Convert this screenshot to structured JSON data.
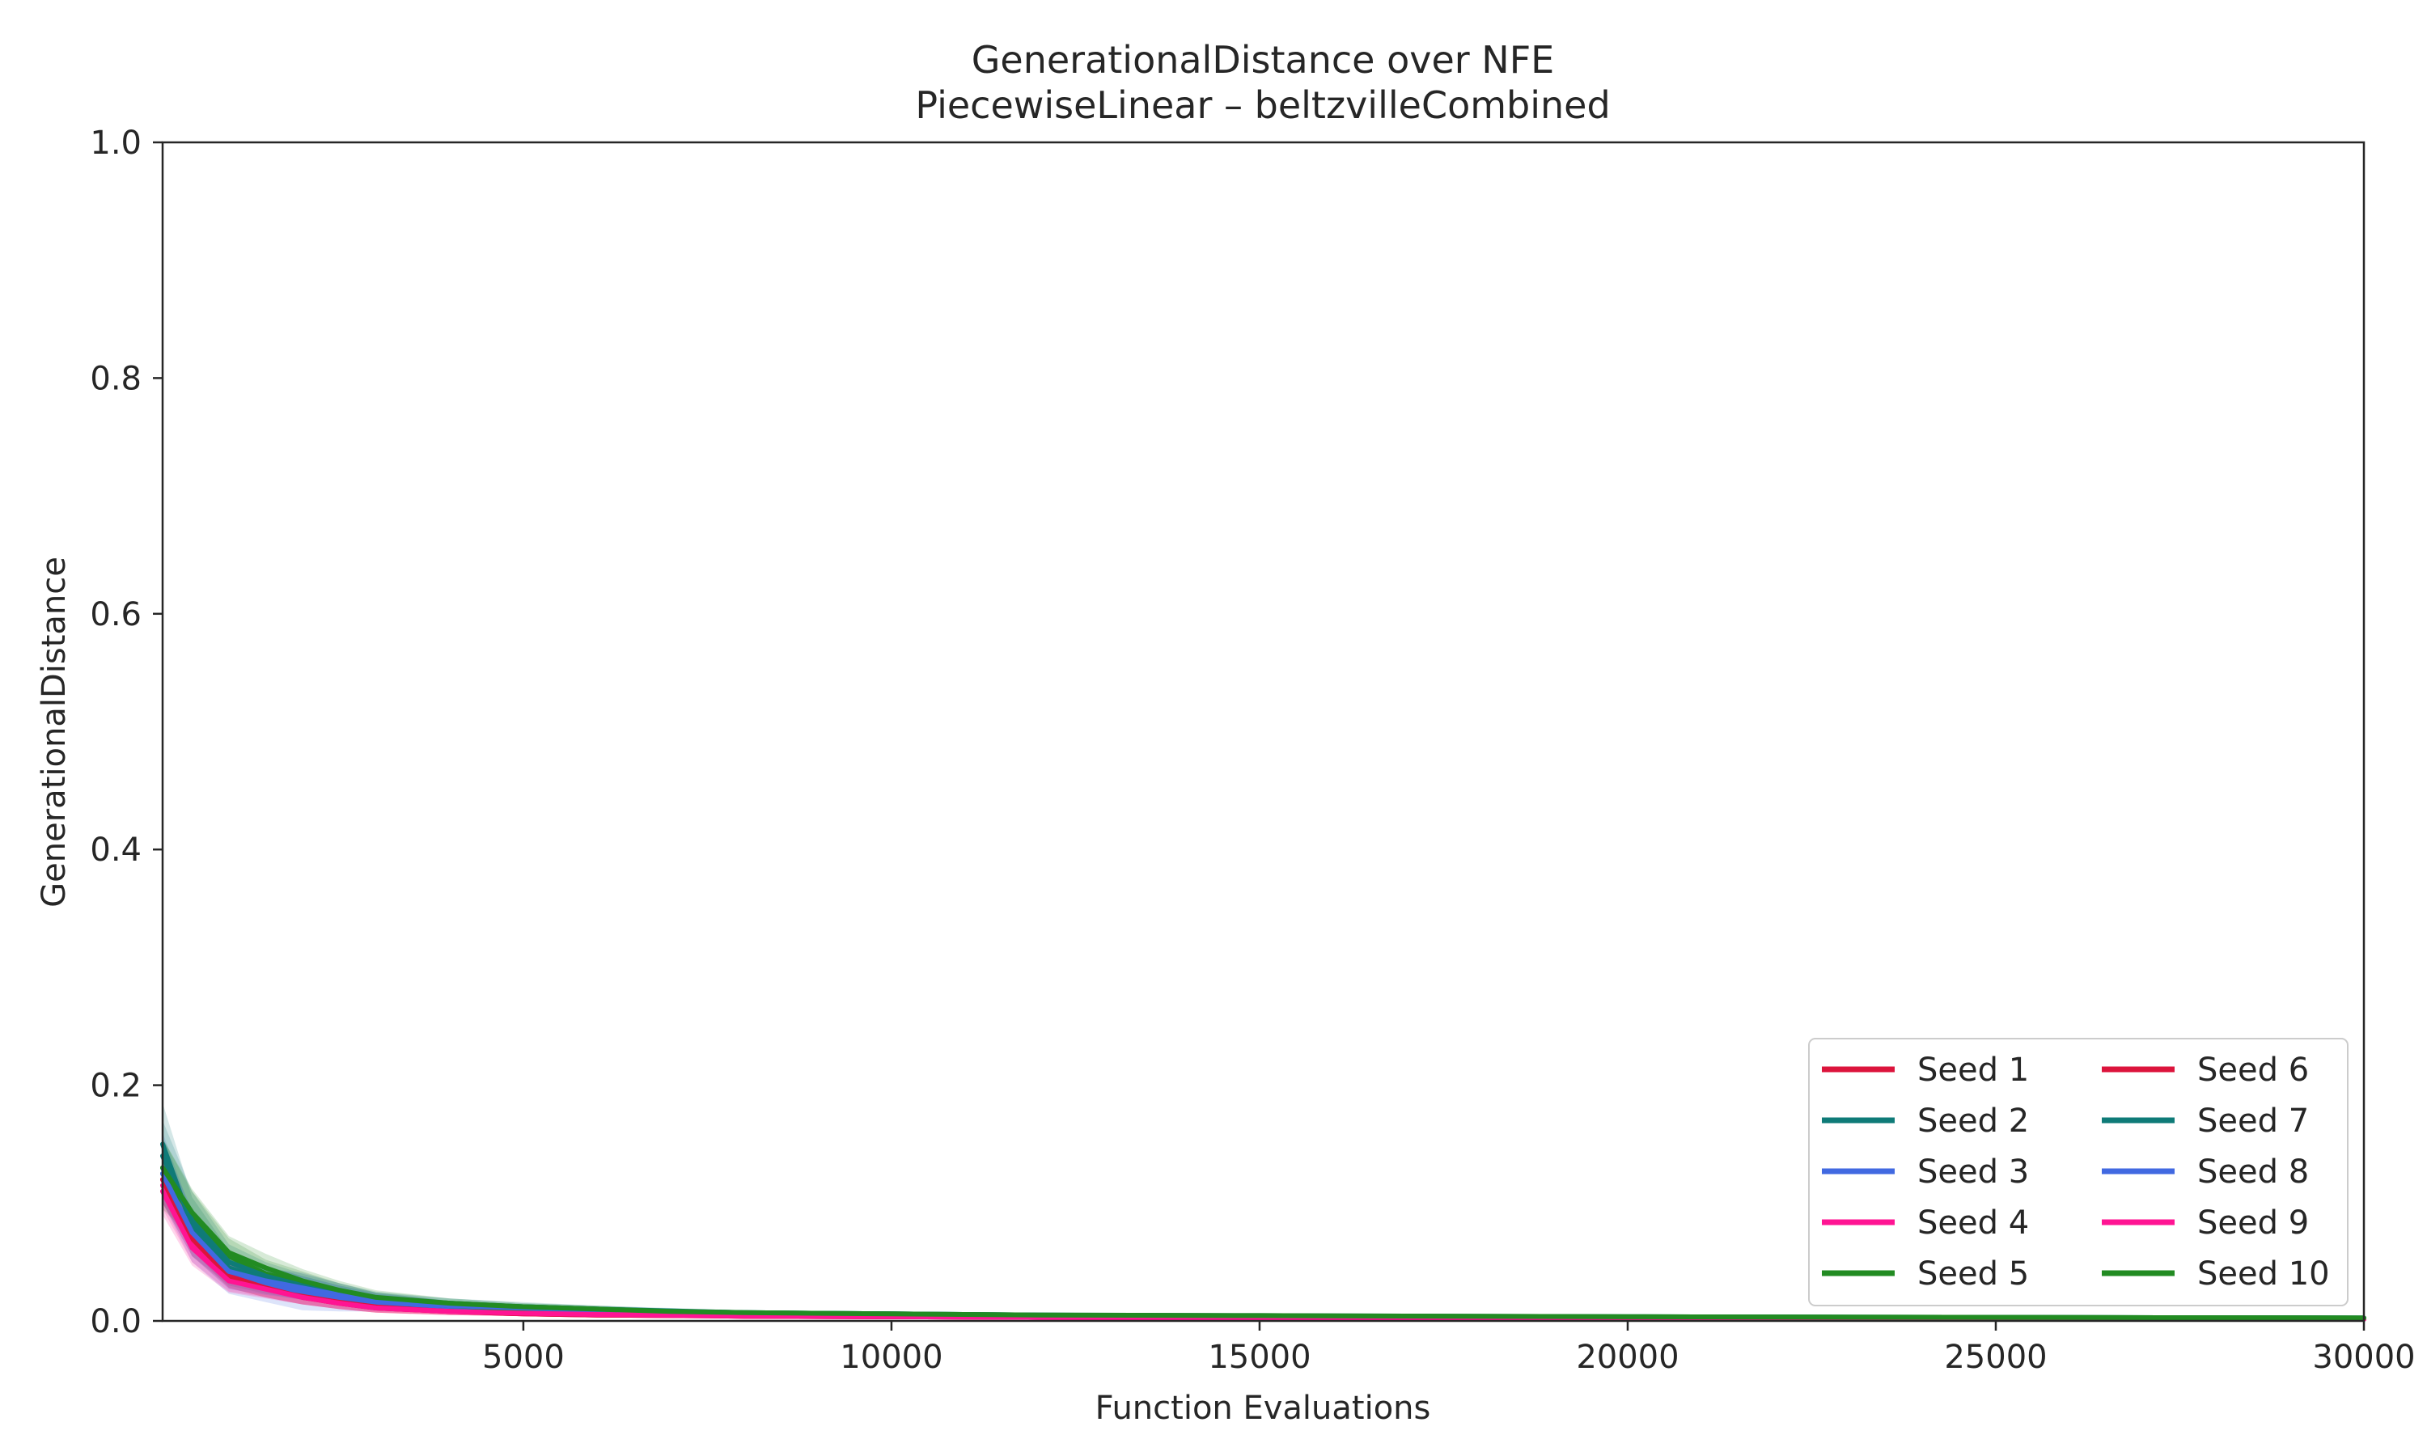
{
  "chart_data": {
    "type": "line",
    "title": "GenerationalDistance over NFE",
    "subtitle": "PiecewiseLinear – beltzvilleCombined",
    "xlabel": "Function Evaluations",
    "ylabel": "GenerationalDistance",
    "xlim": [
      100,
      30000
    ],
    "ylim": [
      0,
      1.0
    ],
    "xticks": [
      5000,
      10000,
      15000,
      20000,
      25000,
      30000
    ],
    "yticks": [
      0.0,
      0.2,
      0.4,
      0.6,
      0.8,
      1.0
    ],
    "ytick_labels": [
      "0.0",
      "0.2",
      "0.4",
      "0.6",
      "0.8",
      "1.0"
    ],
    "grid": false,
    "legend_position": "bottom-right",
    "legend_columns": 2,
    "x": [
      100,
      500,
      1000,
      1500,
      2000,
      2500,
      3000,
      4000,
      5000,
      6000,
      7000,
      8000,
      10000,
      12000,
      15000,
      20000,
      25000,
      30000
    ],
    "series": [
      {
        "name": "Seed 1",
        "color": "#dc143c",
        "values": [
          0.12,
          0.075,
          0.04,
          0.03,
          0.022,
          0.016,
          0.012,
          0.009,
          0.007,
          0.006,
          0.005,
          0.004,
          0.0035,
          0.003,
          0.0025,
          0.002,
          0.0018,
          0.0015
        ],
        "band": [
          0.02,
          0.015,
          0.012,
          0.01,
          0.008,
          0.006,
          0.005,
          0.004,
          0.003,
          0.002,
          0.002,
          0.002,
          0.001,
          0.001,
          0.001,
          0.001,
          0.001,
          0.001
        ]
      },
      {
        "name": "Seed 2",
        "color": "#0f7b78",
        "values": [
          0.15,
          0.08,
          0.045,
          0.035,
          0.028,
          0.022,
          0.018,
          0.014,
          0.012,
          0.01,
          0.008,
          0.007,
          0.006,
          0.005,
          0.004,
          0.0035,
          0.003,
          0.0025
        ],
        "band": [
          0.035,
          0.025,
          0.015,
          0.012,
          0.01,
          0.008,
          0.006,
          0.005,
          0.004,
          0.003,
          0.003,
          0.002,
          0.002,
          0.002,
          0.001,
          0.001,
          0.001,
          0.001
        ]
      },
      {
        "name": "Seed 3",
        "color": "#4169e1",
        "values": [
          0.13,
          0.07,
          0.038,
          0.03,
          0.025,
          0.02,
          0.016,
          0.012,
          0.01,
          0.008,
          0.007,
          0.006,
          0.005,
          0.0045,
          0.004,
          0.003,
          0.0025,
          0.002
        ],
        "band": [
          0.03,
          0.02,
          0.015,
          0.014,
          0.016,
          0.012,
          0.008,
          0.005,
          0.004,
          0.003,
          0.003,
          0.002,
          0.002,
          0.002,
          0.001,
          0.001,
          0.001,
          0.001
        ]
      },
      {
        "name": "Seed 4",
        "color": "#ff1493",
        "values": [
          0.115,
          0.065,
          0.035,
          0.028,
          0.02,
          0.015,
          0.011,
          0.008,
          0.006,
          0.005,
          0.0045,
          0.004,
          0.0035,
          0.003,
          0.0025,
          0.002,
          0.0018,
          0.0015
        ],
        "band": [
          0.02,
          0.015,
          0.01,
          0.008,
          0.006,
          0.005,
          0.004,
          0.003,
          0.002,
          0.002,
          0.002,
          0.001,
          0.001,
          0.001,
          0.001,
          0.001,
          0.001,
          0.001
        ]
      },
      {
        "name": "Seed 5",
        "color": "#228b22",
        "values": [
          0.125,
          0.09,
          0.055,
          0.04,
          0.032,
          0.024,
          0.018,
          0.013,
          0.01,
          0.008,
          0.007,
          0.006,
          0.005,
          0.0045,
          0.004,
          0.0035,
          0.003,
          0.0025
        ],
        "band": [
          0.03,
          0.02,
          0.015,
          0.012,
          0.01,
          0.008,
          0.006,
          0.004,
          0.003,
          0.003,
          0.002,
          0.002,
          0.002,
          0.001,
          0.001,
          0.001,
          0.001,
          0.001
        ]
      },
      {
        "name": "Seed 6",
        "color": "#dc143c",
        "values": [
          0.12,
          0.07,
          0.038,
          0.028,
          0.02,
          0.015,
          0.011,
          0.008,
          0.006,
          0.005,
          0.0045,
          0.004,
          0.0035,
          0.003,
          0.0025,
          0.002,
          0.0018,
          0.0015
        ],
        "band": [
          0.02,
          0.015,
          0.01,
          0.008,
          0.006,
          0.005,
          0.004,
          0.003,
          0.002,
          0.002,
          0.002,
          0.001,
          0.001,
          0.001,
          0.001,
          0.001,
          0.001,
          0.001
        ]
      },
      {
        "name": "Seed 7",
        "color": "#0f7b78",
        "values": [
          0.14,
          0.085,
          0.05,
          0.038,
          0.03,
          0.024,
          0.019,
          0.015,
          0.012,
          0.01,
          0.0085,
          0.007,
          0.006,
          0.005,
          0.0045,
          0.0035,
          0.003,
          0.0025
        ],
        "band": [
          0.03,
          0.025,
          0.015,
          0.012,
          0.01,
          0.008,
          0.006,
          0.004,
          0.003,
          0.003,
          0.002,
          0.002,
          0.002,
          0.001,
          0.001,
          0.001,
          0.001,
          0.001
        ]
      },
      {
        "name": "Seed 8",
        "color": "#4169e1",
        "values": [
          0.125,
          0.075,
          0.042,
          0.034,
          0.028,
          0.022,
          0.017,
          0.013,
          0.011,
          0.009,
          0.0075,
          0.0065,
          0.0055,
          0.0048,
          0.004,
          0.003,
          0.0025,
          0.002
        ],
        "band": [
          0.025,
          0.02,
          0.015,
          0.012,
          0.01,
          0.008,
          0.006,
          0.004,
          0.003,
          0.003,
          0.002,
          0.002,
          0.002,
          0.001,
          0.001,
          0.001,
          0.001,
          0.001
        ]
      },
      {
        "name": "Seed 9",
        "color": "#ff1493",
        "values": [
          0.11,
          0.062,
          0.034,
          0.027,
          0.02,
          0.015,
          0.011,
          0.008,
          0.0065,
          0.0055,
          0.0048,
          0.0042,
          0.0036,
          0.003,
          0.0025,
          0.002,
          0.0018,
          0.0015
        ],
        "band": [
          0.02,
          0.015,
          0.01,
          0.008,
          0.006,
          0.005,
          0.004,
          0.003,
          0.002,
          0.002,
          0.002,
          0.001,
          0.001,
          0.001,
          0.001,
          0.001,
          0.001,
          0.001
        ]
      },
      {
        "name": "Seed 10",
        "color": "#228b22",
        "values": [
          0.13,
          0.092,
          0.058,
          0.045,
          0.034,
          0.026,
          0.02,
          0.015,
          0.012,
          0.01,
          0.008,
          0.007,
          0.006,
          0.005,
          0.0045,
          0.0035,
          0.003,
          0.0025
        ],
        "band": [
          0.025,
          0.02,
          0.014,
          0.012,
          0.01,
          0.008,
          0.006,
          0.004,
          0.003,
          0.003,
          0.002,
          0.002,
          0.002,
          0.001,
          0.001,
          0.001,
          0.001,
          0.001
        ]
      }
    ]
  }
}
